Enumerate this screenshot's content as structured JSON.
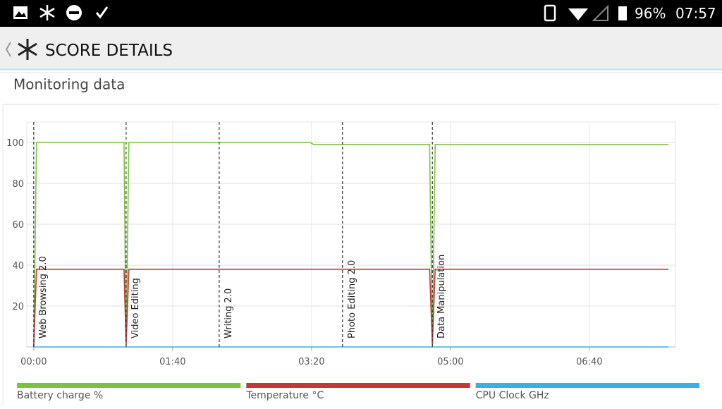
{
  "status_bar": {
    "battery": "96%",
    "time": "07:57"
  },
  "header": {
    "title": "SCORE DETAILS"
  },
  "section": {
    "title": "Monitoring data"
  },
  "chart_data": {
    "type": "line",
    "x": [
      0,
      2,
      65,
      66.5,
      68.5,
      199,
      201.5,
      285,
      287,
      289,
      457
    ],
    "series": [
      {
        "name": "Battery charge %",
        "color": "#7cc242",
        "values": [
          0,
          100,
          100,
          0,
          100,
          100,
          99,
          99,
          0,
          99,
          99
        ]
      },
      {
        "name": "Temperature °C",
        "color": "#c0393b",
        "values": [
          0,
          38,
          38,
          1,
          38,
          38,
          38,
          38,
          1,
          38,
          38
        ]
      },
      {
        "name": "CPU Clock GHz",
        "color": "#3aafe0",
        "values": [
          0,
          0,
          0,
          0,
          0,
          0,
          0,
          0,
          0,
          0,
          0
        ]
      }
    ],
    "xlim": [
      -5,
      462
    ],
    "ylim": [
      0,
      110
    ],
    "xticks": [
      {
        "value": 0,
        "label": "00:00"
      },
      {
        "value": 100,
        "label": "01:40"
      },
      {
        "value": 200,
        "label": "03:20"
      },
      {
        "value": 300,
        "label": "05:00"
      },
      {
        "value": 400,
        "label": "06:40"
      }
    ],
    "yticks": [
      20,
      40,
      60,
      80,
      100
    ],
    "grid": true,
    "annotations": [
      {
        "x": 0,
        "text": "Web Browsing 2.0"
      },
      {
        "x": 66.5,
        "text": "Video Editing"
      },
      {
        "x": 133.5,
        "text": "Writing 2.0"
      },
      {
        "x": 222.3,
        "text": "Photo Editing 2.0"
      },
      {
        "x": 287,
        "text": "Data Manipulation"
      }
    ]
  }
}
